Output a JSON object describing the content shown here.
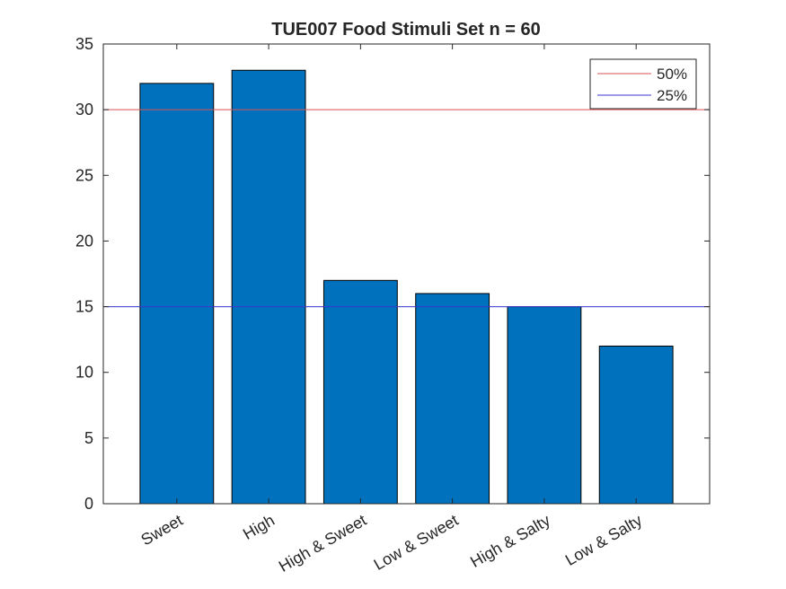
{
  "chart_data": {
    "type": "bar",
    "title": "TUE007 Food Stimuli Set n = 60",
    "xlabel": "",
    "ylabel": "",
    "categories": [
      "Sweet",
      "High",
      "High & Sweet",
      "Low & Sweet",
      "High & Salty",
      "Low & Salty"
    ],
    "values": [
      32,
      33,
      17,
      16,
      15,
      12
    ],
    "ylim": [
      0,
      35
    ],
    "yticks": [
      0,
      5,
      10,
      15,
      20,
      25,
      30,
      35
    ],
    "bar_color": "#0072BD",
    "reference_lines": [
      {
        "name": "50%",
        "y": 30,
        "color": "#D95353"
      },
      {
        "name": "25%",
        "y": 15,
        "color": "#3737CF"
      }
    ],
    "legend": {
      "placement": "top-right",
      "entries": [
        "50%",
        "25%"
      ]
    },
    "grid": false
  }
}
